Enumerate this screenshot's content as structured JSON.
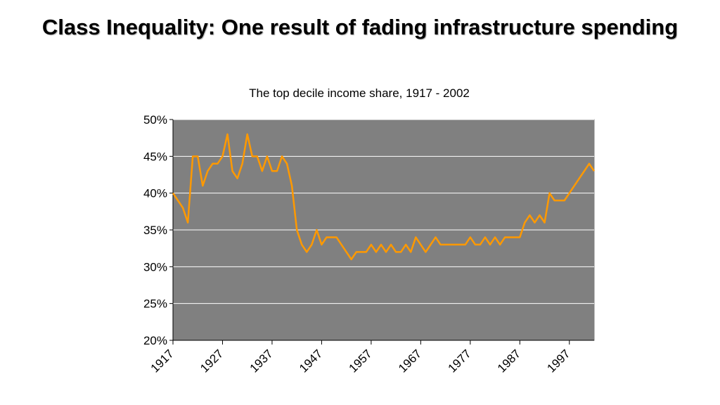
{
  "chart_data": {
    "type": "line",
    "title": "Class Inequality: One result of fading infrastructure spending",
    "subtitle": "The top decile income share, 1917 - 2002",
    "x": [
      1917,
      1918,
      1919,
      1920,
      1921,
      1922,
      1923,
      1924,
      1925,
      1926,
      1927,
      1928,
      1929,
      1930,
      1931,
      1932,
      1933,
      1934,
      1935,
      1936,
      1937,
      1938,
      1939,
      1940,
      1941,
      1942,
      1943,
      1944,
      1945,
      1946,
      1947,
      1948,
      1949,
      1950,
      1951,
      1952,
      1953,
      1954,
      1955,
      1956,
      1957,
      1958,
      1959,
      1960,
      1961,
      1962,
      1963,
      1964,
      1965,
      1966,
      1967,
      1968,
      1969,
      1970,
      1971,
      1972,
      1973,
      1974,
      1975,
      1976,
      1977,
      1978,
      1979,
      1980,
      1981,
      1982,
      1983,
      1984,
      1985,
      1986,
      1987,
      1988,
      1989,
      1990,
      1991,
      1992,
      1993,
      1994,
      1995,
      1996,
      1997,
      1998,
      1999,
      2000,
      2001,
      2002
    ],
    "series": [
      {
        "color": "#ff9900",
        "values": [
          40,
          39,
          38,
          36,
          45,
          45,
          41,
          43,
          44,
          44,
          45,
          48,
          43,
          42,
          44,
          48,
          45,
          45,
          43,
          45,
          43,
          43,
          45,
          44,
          41,
          35,
          33,
          32,
          33,
          35,
          33,
          34,
          34,
          34,
          33,
          32,
          31,
          32,
          32,
          32,
          33,
          32,
          33,
          32,
          33,
          32,
          32,
          33,
          32,
          34,
          33,
          32,
          33,
          34,
          33,
          33,
          33,
          33,
          33,
          33,
          34,
          33,
          33,
          34,
          33,
          34,
          33,
          34,
          34,
          34,
          34,
          36,
          37,
          36,
          37,
          36,
          40,
          39,
          39,
          39,
          40,
          41,
          42,
          43,
          44,
          43
        ]
      }
    ],
    "xlim": [
      1917,
      2002
    ],
    "xticks": [
      1917,
      1927,
      1937,
      1947,
      1957,
      1967,
      1977,
      1987,
      1997
    ],
    "ylim": [
      20,
      50
    ],
    "yticks": [
      {
        "value": 20,
        "label": "20%"
      },
      {
        "value": 25,
        "label": "25%"
      },
      {
        "value": 30,
        "label": "30%"
      },
      {
        "value": 35,
        "label": "35%"
      },
      {
        "value": 40,
        "label": "40%"
      },
      {
        "value": 45,
        "label": "45%"
      },
      {
        "value": 50,
        "label": "50%"
      }
    ],
    "grid": true,
    "plot_background": "#808080"
  }
}
